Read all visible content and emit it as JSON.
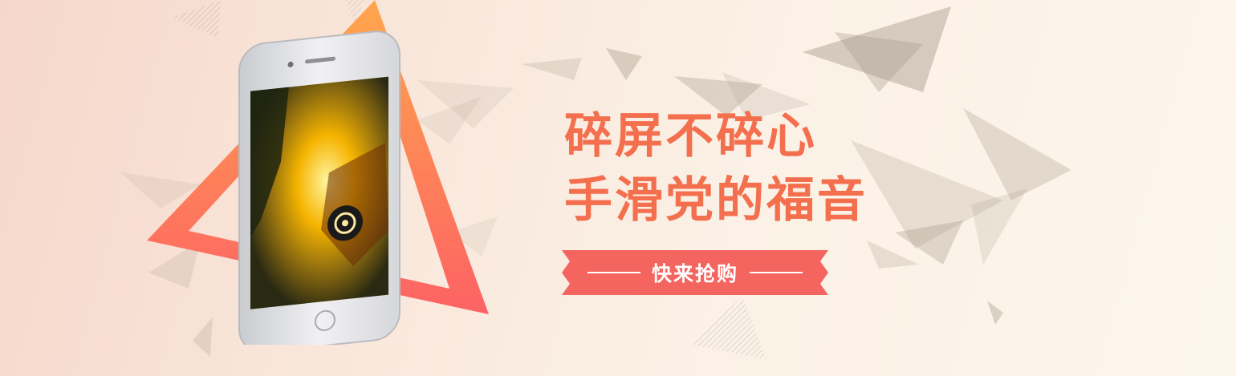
{
  "banner": {
    "headline_line1": "碎屏不碎心",
    "headline_line2": "手滑党的福音",
    "cta_label": "快来抢购"
  },
  "colors": {
    "accent": "#f36f4e",
    "button": "#f56560",
    "triangle_top": "#ffa64d",
    "triangle_bottom": "#fd6264",
    "background": "#fbf1e6"
  },
  "icons": [
    "smartphone-icon",
    "triangle-frame",
    "background-shards"
  ]
}
